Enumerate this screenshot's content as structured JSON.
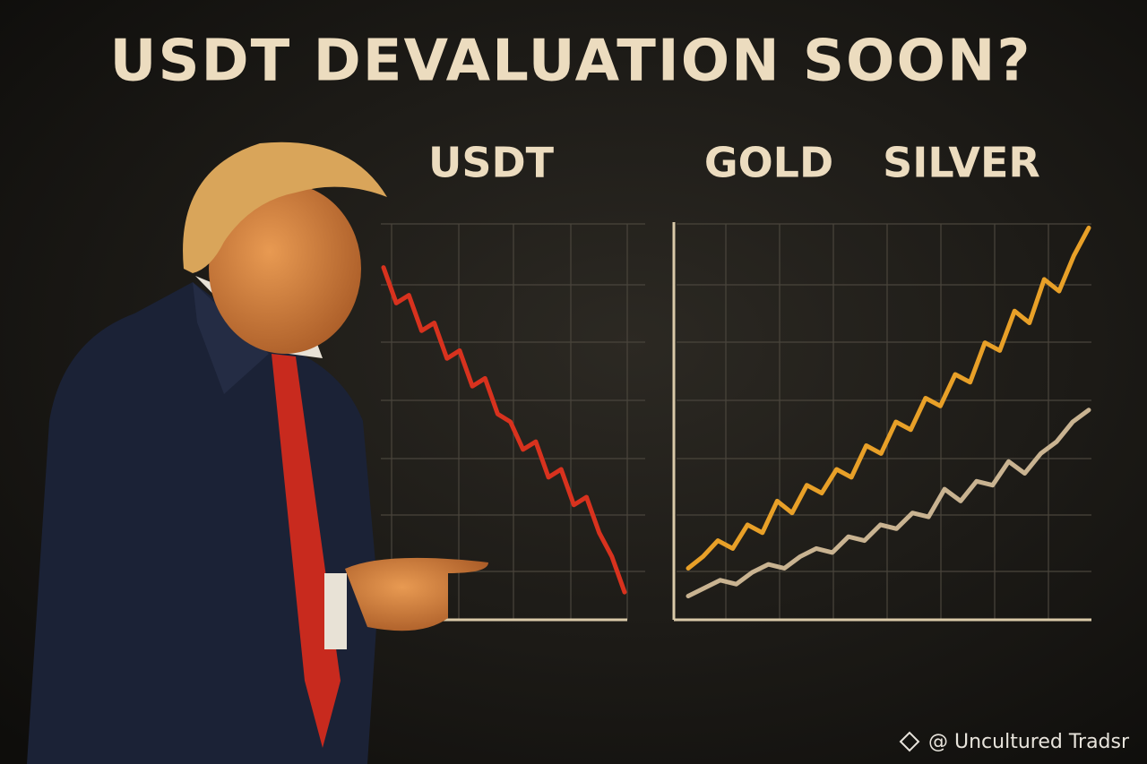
{
  "title": "USDT DEVALUATION SOON?",
  "watermark": "@ Uncultured Tradsr",
  "chart_data": [
    {
      "type": "line",
      "ylim": [
        0,
        100
      ],
      "grid": true,
      "series": [
        {
          "name": "USDT",
          "color": "#d8321e",
          "values": [
            89,
            80,
            82,
            73,
            75,
            66,
            68,
            59,
            61,
            52,
            50,
            43,
            45,
            36,
            38,
            29,
            31,
            22,
            16,
            7
          ]
        }
      ]
    },
    {
      "type": "line",
      "ylim": [
        0,
        100
      ],
      "grid": true,
      "series": [
        {
          "name": "GOLD",
          "color": "#e8a028",
          "values": [
            13,
            16,
            20,
            18,
            24,
            22,
            30,
            27,
            34,
            32,
            38,
            36,
            44,
            42,
            50,
            48,
            56,
            54,
            62,
            60,
            70,
            68,
            78,
            75,
            86,
            83,
            92,
            99
          ]
        },
        {
          "name": "SILVER",
          "color": "#c9b391",
          "values": [
            6,
            8,
            10,
            9,
            12,
            14,
            13,
            16,
            18,
            17,
            21,
            20,
            24,
            23,
            27,
            26,
            33,
            30,
            35,
            34,
            40,
            37,
            42,
            45,
            50,
            53
          ]
        }
      ]
    }
  ]
}
